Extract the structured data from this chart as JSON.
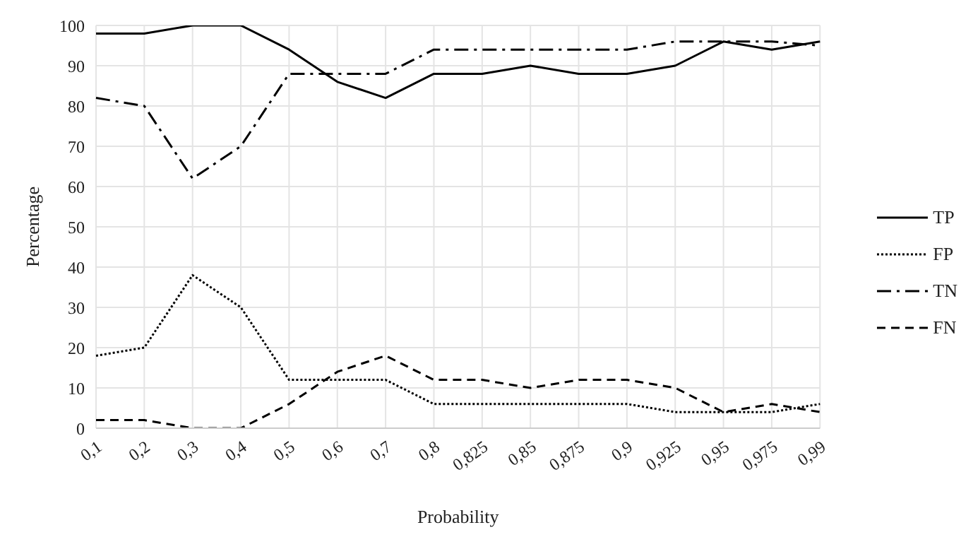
{
  "chart_data": {
    "type": "line",
    "xlabel": "Probability",
    "ylabel": "Percentage",
    "categories": [
      "0,1",
      "0,2",
      "0,3",
      "0,4",
      "0,5",
      "0,6",
      "0,7",
      "0,8",
      "0,825",
      "0,85",
      "0,875",
      "0,9",
      "0,925",
      "0,95",
      "0,975",
      "0,99"
    ],
    "series": [
      {
        "name": "TP",
        "color": "#000000",
        "line_style": "solid",
        "values": [
          98,
          98,
          100,
          100,
          94,
          86,
          82,
          88,
          88,
          90,
          88,
          88,
          90,
          96,
          94,
          96
        ]
      },
      {
        "name": "FP",
        "color": "#000000",
        "line_style": "dotted",
        "values": [
          18,
          20,
          38,
          30,
          12,
          12,
          12,
          6,
          6,
          6,
          6,
          6,
          4,
          4,
          4,
          6
        ]
      },
      {
        "name": "TN",
        "color": "#000000",
        "line_style": "dashdot",
        "values": [
          82,
          80,
          62,
          70,
          88,
          88,
          88,
          94,
          94,
          94,
          94,
          94,
          96,
          96,
          96,
          95
        ]
      },
      {
        "name": "FN",
        "color": "#000000",
        "line_style": "dashed",
        "values": [
          2,
          2,
          0,
          0,
          6,
          14,
          18,
          12,
          12,
          10,
          12,
          12,
          10,
          4,
          6,
          4
        ]
      }
    ],
    "ylim": [
      0,
      100
    ],
    "yticks": [
      0,
      10,
      20,
      30,
      40,
      50,
      60,
      70,
      80,
      90,
      100
    ],
    "grid": true,
    "legend": "right",
    "marker": "none"
  }
}
